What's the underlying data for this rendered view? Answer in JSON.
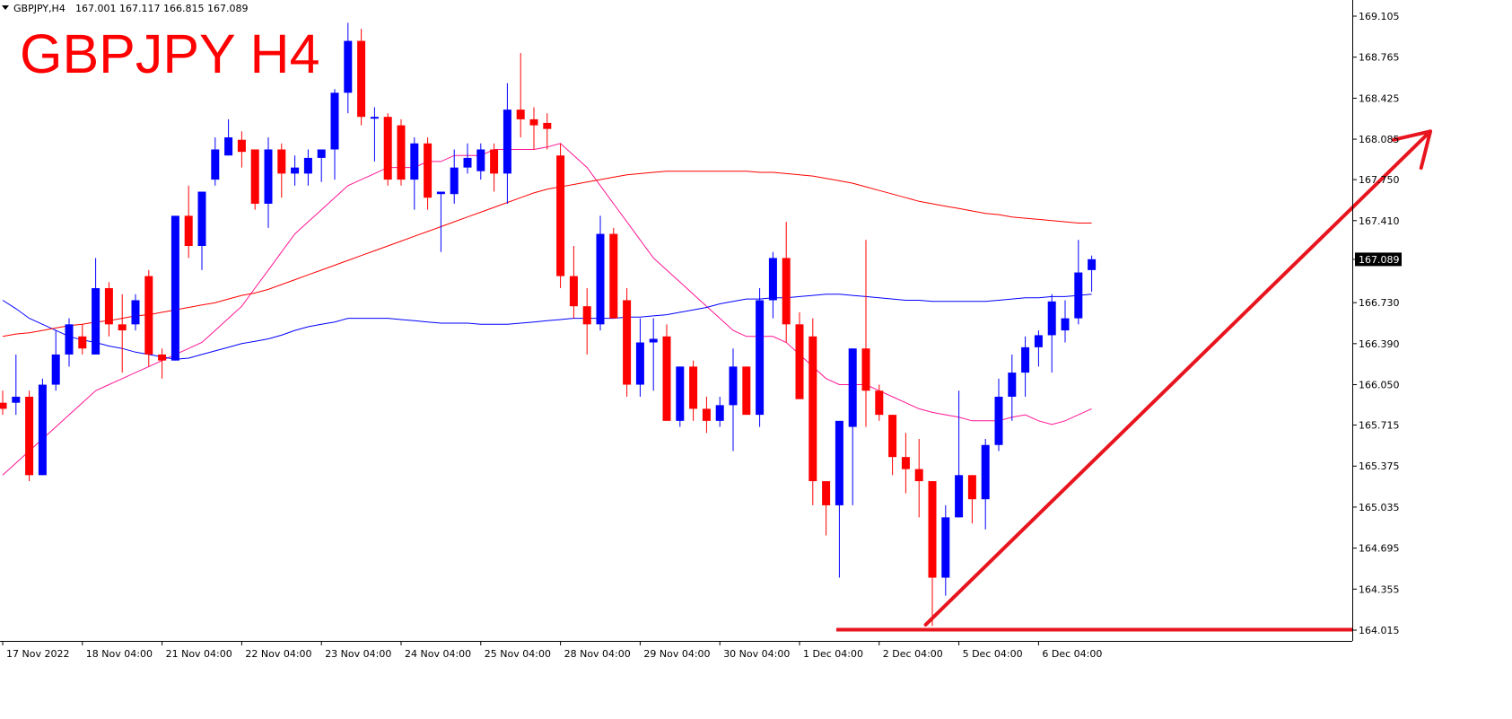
{
  "header": {
    "symbol_info": "GBPJPY,H4",
    "ohlc": "167.001 167.117 166.815 167.089",
    "dropdown_icon": "triangle-down-icon"
  },
  "title": "GBPJPY H4",
  "colors": {
    "bull": "#0000ff",
    "bear": "#ff0000",
    "ma_fast": "#ff1493",
    "ma_mid": "#0000ff",
    "ma_slow": "#ff0000",
    "annotation": "#e8141e",
    "price_tag_bg": "#000000",
    "price_tag_text": "#ffffff",
    "axis": "#000000"
  },
  "chart_data": {
    "type": "candlestick",
    "symbol": "GBPJPY",
    "timeframe": "H4",
    "ylim": [
      163.95,
      169.2
    ],
    "y_ticks": [
      "169.105",
      "168.765",
      "168.425",
      "168.085",
      "167.750",
      "167.410",
      "167.089",
      "166.730",
      "166.390",
      "166.050",
      "165.715",
      "165.375",
      "165.035",
      "164.695",
      "164.355",
      "164.015"
    ],
    "current_price": "167.089",
    "x_labels": [
      {
        "label": "17 Nov 2022",
        "bar": 0
      },
      {
        "label": "18 Nov 04:00",
        "bar": 6
      },
      {
        "label": "21 Nov 04:00",
        "bar": 12
      },
      {
        "label": "22 Nov 04:00",
        "bar": 18
      },
      {
        "label": "23 Nov 04:00",
        "bar": 24
      },
      {
        "label": "24 Nov 04:00",
        "bar": 30
      },
      {
        "label": "25 Nov 04:00",
        "bar": 36
      },
      {
        "label": "28 Nov 04:00",
        "bar": 42
      },
      {
        "label": "29 Nov 04:00",
        "bar": 48
      },
      {
        "label": "30 Nov 04:00",
        "bar": 54
      },
      {
        "label": "1 Dec 04:00",
        "bar": 60
      },
      {
        "label": "2 Dec 04:00",
        "bar": 66
      },
      {
        "label": "5 Dec 04:00",
        "bar": 72
      },
      {
        "label": "6 Dec 04:00",
        "bar": 78
      }
    ],
    "candles": [
      [
        165.9,
        166.0,
        165.8,
        165.85
      ],
      [
        165.9,
        166.3,
        165.8,
        165.95
      ],
      [
        165.95,
        166.0,
        165.25,
        165.3
      ],
      [
        165.3,
        166.1,
        165.3,
        166.05
      ],
      [
        166.05,
        166.5,
        166.0,
        166.3
      ],
      [
        166.3,
        166.6,
        166.2,
        166.55
      ],
      [
        166.45,
        166.55,
        166.3,
        166.35
      ],
      [
        166.3,
        167.1,
        166.3,
        166.85
      ],
      [
        166.85,
        166.9,
        166.45,
        166.55
      ],
      [
        166.55,
        166.8,
        166.15,
        166.5
      ],
      [
        166.55,
        166.8,
        166.5,
        166.75
      ],
      [
        166.95,
        167.0,
        166.2,
        166.3
      ],
      [
        166.3,
        166.35,
        166.1,
        166.25
      ],
      [
        166.25,
        167.45,
        166.25,
        167.45
      ],
      [
        167.45,
        167.7,
        167.1,
        167.2
      ],
      [
        167.2,
        167.65,
        167.0,
        167.65
      ],
      [
        167.75,
        168.1,
        167.7,
        168.0
      ],
      [
        167.95,
        168.25,
        167.95,
        168.1
      ],
      [
        168.08,
        168.15,
        167.85,
        167.98
      ],
      [
        168.0,
        168.0,
        167.5,
        167.55
      ],
      [
        167.55,
        168.1,
        167.35,
        168.0
      ],
      [
        168.0,
        168.05,
        167.6,
        167.8
      ],
      [
        167.8,
        167.95,
        167.7,
        167.85
      ],
      [
        167.8,
        168.0,
        167.7,
        167.93
      ],
      [
        167.93,
        168.0,
        167.73,
        168.0
      ],
      [
        168.0,
        168.5,
        167.75,
        168.47
      ],
      [
        168.47,
        169.05,
        168.3,
        168.9
      ],
      [
        168.9,
        169.0,
        168.2,
        168.27
      ],
      [
        168.27,
        168.35,
        167.9,
        168.27
      ],
      [
        168.27,
        168.3,
        167.7,
        167.75
      ],
      [
        168.2,
        168.25,
        167.7,
        167.75
      ],
      [
        167.75,
        168.1,
        167.5,
        168.05
      ],
      [
        168.05,
        168.1,
        167.5,
        167.6
      ],
      [
        167.63,
        167.65,
        167.15,
        167.65
      ],
      [
        167.63,
        168.0,
        167.55,
        167.85
      ],
      [
        167.85,
        168.05,
        167.8,
        167.93
      ],
      [
        167.82,
        168.05,
        167.75,
        168.0
      ],
      [
        168.0,
        168.05,
        167.65,
        167.8
      ],
      [
        167.8,
        168.55,
        167.55,
        168.33
      ],
      [
        168.33,
        168.8,
        168.1,
        168.25
      ],
      [
        168.25,
        168.35,
        168.0,
        168.2
      ],
      [
        168.22,
        168.3,
        168.0,
        168.17
      ],
      [
        167.95,
        168.05,
        166.85,
        166.95
      ],
      [
        166.95,
        167.2,
        166.6,
        166.7
      ],
      [
        166.7,
        166.85,
        166.3,
        166.55
      ],
      [
        166.55,
        167.45,
        166.5,
        167.3
      ],
      [
        167.3,
        167.35,
        166.6,
        166.6
      ],
      [
        166.75,
        166.85,
        165.95,
        166.05
      ],
      [
        166.05,
        166.6,
        165.95,
        166.4
      ],
      [
        166.4,
        166.6,
        166.0,
        166.43
      ],
      [
        166.45,
        166.55,
        165.75,
        165.75
      ],
      [
        165.75,
        166.2,
        165.7,
        166.2
      ],
      [
        166.2,
        166.25,
        165.75,
        165.85
      ],
      [
        165.85,
        165.95,
        165.65,
        165.75
      ],
      [
        165.75,
        165.95,
        165.7,
        165.88
      ],
      [
        165.88,
        166.35,
        165.5,
        166.2
      ],
      [
        166.2,
        166.2,
        165.8,
        165.8
      ],
      [
        165.8,
        166.85,
        165.7,
        166.75
      ],
      [
        166.75,
        167.15,
        166.6,
        167.1
      ],
      [
        167.1,
        167.4,
        166.4,
        166.55
      ],
      [
        166.55,
        166.65,
        165.95,
        165.93
      ],
      [
        166.45,
        166.6,
        165.05,
        165.25
      ],
      [
        165.25,
        165.2,
        164.8,
        165.05
      ],
      [
        165.05,
        165.75,
        164.45,
        165.75
      ],
      [
        165.7,
        166.35,
        165.05,
        166.35
      ],
      [
        166.35,
        167.25,
        165.7,
        166.0
      ],
      [
        166.0,
        166.05,
        165.75,
        165.8
      ],
      [
        165.8,
        165.8,
        165.3,
        165.45
      ],
      [
        165.45,
        165.65,
        165.15,
        165.35
      ],
      [
        165.35,
        165.6,
        164.95,
        165.25
      ],
      [
        165.25,
        165.25,
        164.05,
        164.45
      ],
      [
        164.45,
        165.05,
        164.3,
        164.95
      ],
      [
        164.95,
        166.0,
        164.95,
        165.3
      ],
      [
        165.3,
        165.3,
        164.9,
        165.1
      ],
      [
        165.1,
        165.6,
        164.85,
        165.55
      ],
      [
        165.55,
        166.1,
        165.5,
        165.95
      ],
      [
        165.95,
        166.3,
        165.75,
        166.15
      ],
      [
        166.15,
        166.45,
        165.95,
        166.36
      ],
      [
        166.36,
        166.5,
        166.2,
        166.46
      ],
      [
        166.46,
        166.8,
        166.15,
        166.74
      ],
      [
        166.5,
        166.75,
        166.4,
        166.6
      ],
      [
        166.6,
        167.25,
        166.55,
        166.98
      ],
      [
        167.0,
        167.12,
        166.82,
        167.09
      ]
    ],
    "series": [
      {
        "style": "ma-fast",
        "start_bar": 0,
        "values": [
          165.3,
          165.4,
          165.5,
          165.6,
          165.7,
          165.8,
          165.9,
          166.0,
          166.05,
          166.1,
          166.15,
          166.2,
          166.25,
          166.3,
          166.35,
          166.4,
          166.5,
          166.6,
          166.7,
          166.85,
          167.0,
          167.15,
          167.3,
          167.4,
          167.5,
          167.6,
          167.7,
          167.75,
          167.8,
          167.85,
          167.85,
          167.85,
          167.9,
          167.9,
          167.95,
          167.95,
          167.95,
          168.0,
          168.0,
          168.0,
          168.0,
          168.02,
          168.05,
          167.95,
          167.85,
          167.7,
          167.55,
          167.4,
          167.25,
          167.1,
          167.0,
          166.9,
          166.8,
          166.7,
          166.6,
          166.5,
          166.45,
          166.45,
          166.45,
          166.4,
          166.3,
          166.2,
          166.1,
          166.05,
          166.05,
          166.05,
          166.0,
          165.95,
          165.9,
          165.85,
          165.82,
          165.8,
          165.78,
          165.75,
          165.75,
          165.75,
          165.78,
          165.8,
          165.75,
          165.72,
          165.75,
          165.8,
          165.85
        ]
      },
      {
        "style": "ma-mid",
        "start_bar": 0,
        "values": [
          166.75,
          166.68,
          166.6,
          166.55,
          166.5,
          166.45,
          166.42,
          166.4,
          166.37,
          166.35,
          166.32,
          166.3,
          166.28,
          166.26,
          166.27,
          166.3,
          166.33,
          166.36,
          166.39,
          166.41,
          166.43,
          166.46,
          166.5,
          166.53,
          166.55,
          166.57,
          166.6,
          166.6,
          166.6,
          166.6,
          166.59,
          166.58,
          166.57,
          166.56,
          166.56,
          166.56,
          166.55,
          166.55,
          166.55,
          166.56,
          166.57,
          166.58,
          166.59,
          166.6,
          166.6,
          166.6,
          166.6,
          166.61,
          166.61,
          166.62,
          166.63,
          166.65,
          166.67,
          166.69,
          166.72,
          166.74,
          166.76,
          166.76,
          166.77,
          166.77,
          166.78,
          166.79,
          166.8,
          166.8,
          166.79,
          166.78,
          166.77,
          166.76,
          166.75,
          166.75,
          166.74,
          166.74,
          166.74,
          166.74,
          166.74,
          166.75,
          166.76,
          166.77,
          166.77,
          166.78,
          166.78,
          166.79,
          166.8
        ]
      },
      {
        "style": "ma-slow",
        "start_bar": 0,
        "values": [
          166.45,
          166.47,
          166.48,
          166.5,
          166.52,
          166.54,
          166.55,
          166.57,
          166.58,
          166.6,
          166.62,
          166.63,
          166.65,
          166.67,
          166.69,
          166.71,
          166.73,
          166.76,
          166.79,
          166.81,
          166.84,
          166.88,
          166.92,
          166.96,
          167.0,
          167.04,
          167.08,
          167.12,
          167.16,
          167.2,
          167.24,
          167.28,
          167.32,
          167.36,
          167.4,
          167.44,
          167.48,
          167.52,
          167.56,
          167.6,
          167.64,
          167.67,
          167.69,
          167.71,
          167.73,
          167.75,
          167.77,
          167.79,
          167.8,
          167.81,
          167.82,
          167.82,
          167.82,
          167.82,
          167.82,
          167.82,
          167.82,
          167.81,
          167.81,
          167.8,
          167.79,
          167.78,
          167.76,
          167.74,
          167.72,
          167.69,
          167.66,
          167.63,
          167.6,
          167.57,
          167.55,
          167.53,
          167.51,
          167.49,
          167.47,
          167.46,
          167.44,
          167.43,
          167.42,
          167.41,
          167.4,
          167.39,
          167.39
        ]
      }
    ],
    "annotations": {
      "support_level": 164.015,
      "arrow_from": {
        "bar": 69.5,
        "price": 164.06
      },
      "arrow_to": {
        "bar": 107.5,
        "price": 168.15
      }
    }
  }
}
